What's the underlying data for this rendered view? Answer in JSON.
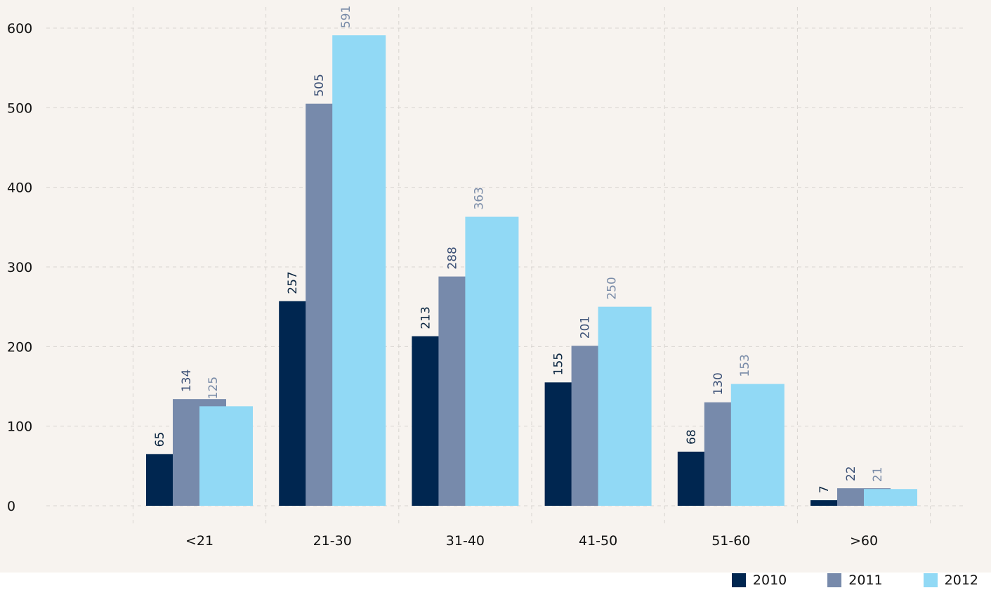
{
  "chart_data": {
    "type": "bar",
    "categories": [
      "<21",
      "21-30",
      "31-40",
      "41-50",
      "51-60",
      ">60"
    ],
    "series": [
      {
        "name": "2010",
        "color": "#002650",
        "label_color": "#0a2540",
        "values": [
          65,
          257,
          213,
          155,
          68,
          7
        ]
      },
      {
        "name": "2011",
        "color": "#778aab",
        "label_color": "#3a4f75",
        "values": [
          134,
          505,
          288,
          201,
          130,
          22
        ]
      },
      {
        "name": "2012",
        "color": "#91d9f5",
        "label_color": "#7a8ca8",
        "values": [
          125,
          591,
          363,
          250,
          153,
          21
        ]
      }
    ],
    "ylim": [
      0,
      600
    ],
    "yticks": [
      0,
      100,
      200,
      300,
      400,
      500,
      600
    ],
    "grid": true,
    "legend": "bottom-right",
    "background": "#f7f3ef"
  }
}
